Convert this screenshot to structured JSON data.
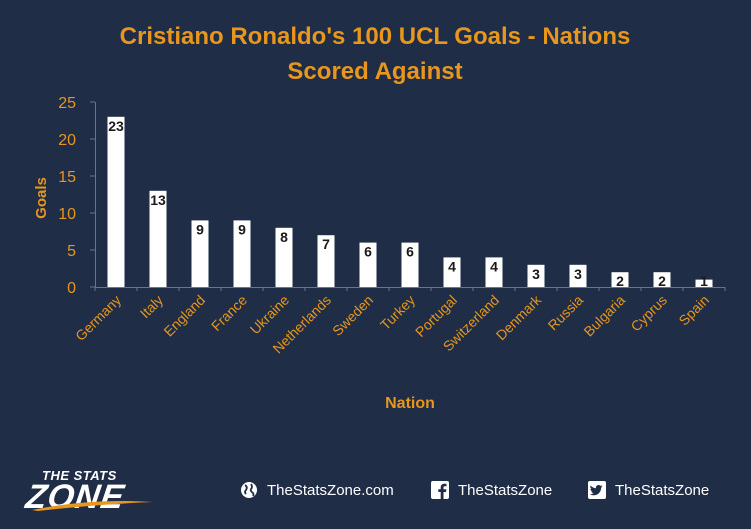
{
  "chart_data": {
    "type": "bar",
    "title": [
      "Cristiano Ronaldo's 100 UCL Goals - Nations",
      "Scored Against"
    ],
    "xlabel": "Nation",
    "ylabel": "Goals",
    "categories": [
      "Germany",
      "Italy",
      "England",
      "France",
      "Ukraine",
      "Netherlands",
      "Sweden",
      "Turkey",
      "Portugal",
      "Switzerland",
      "Denmark",
      "Russia",
      "Bulgaria",
      "Cyprus",
      "Spain"
    ],
    "values": [
      23,
      13,
      9,
      9,
      8,
      7,
      6,
      6,
      4,
      4,
      3,
      3,
      2,
      2,
      1
    ],
    "ylim": [
      0,
      25
    ],
    "yticks": [
      0,
      5,
      10,
      15,
      20,
      25
    ],
    "grid": false,
    "legend": "none",
    "colors": {
      "background": "#1f2d47",
      "bar": "#ffffff",
      "accent": "#e8961c",
      "axis": "#6b7588",
      "data_label": "#1a1a1a"
    }
  },
  "footer": {
    "brand_top": "THE STATS",
    "brand_main": "ZONE",
    "website": "TheStatsZone.com",
    "facebook": "TheStatsZone",
    "twitter": "TheStatsZone",
    "icons": [
      "globe-icon",
      "facebook-icon",
      "twitter-icon"
    ]
  }
}
